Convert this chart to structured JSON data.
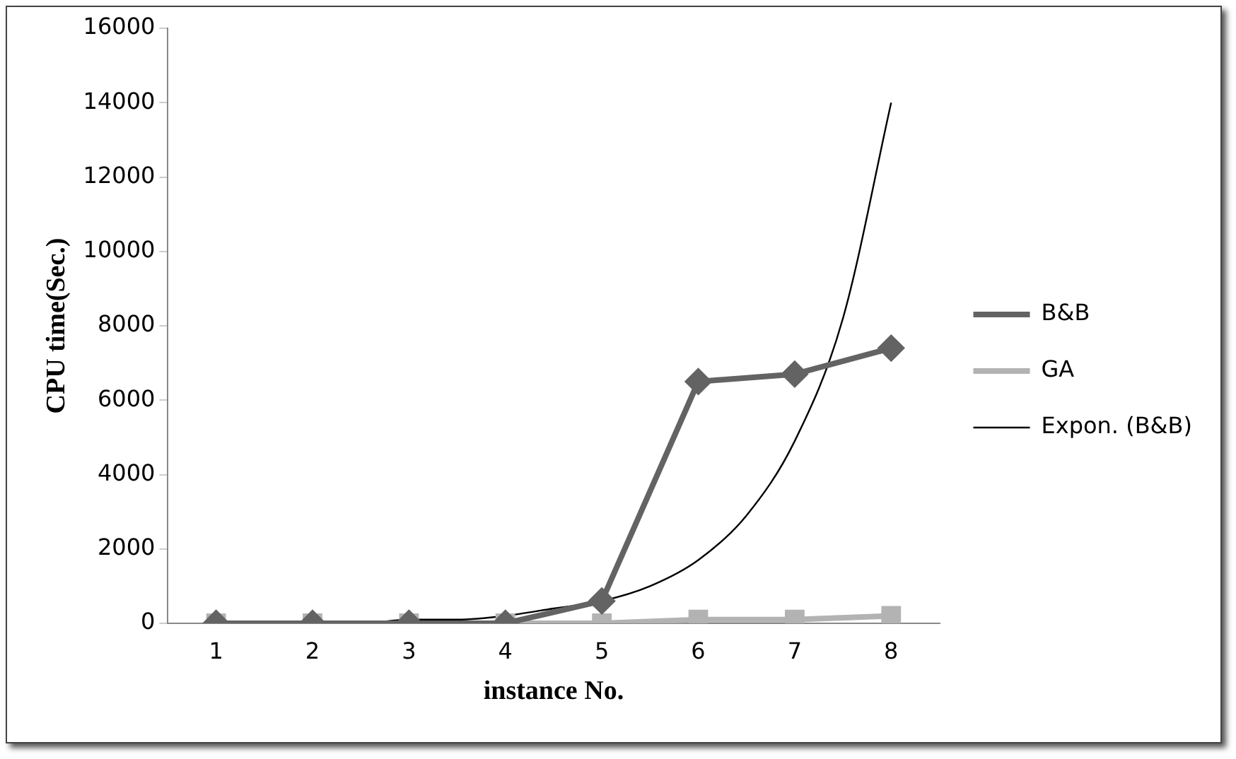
{
  "chart_data": {
    "type": "line",
    "xlabel": "instance No.",
    "ylabel": "CPU time(Sec.)",
    "x": [
      1,
      2,
      3,
      4,
      5,
      6,
      7,
      8
    ],
    "xlim": [
      0.5,
      8.5
    ],
    "xticks": [
      1,
      2,
      3,
      4,
      5,
      6,
      7,
      8
    ],
    "ylim": [
      0,
      16000
    ],
    "yticks": [
      0,
      2000,
      4000,
      6000,
      8000,
      10000,
      12000,
      14000,
      16000
    ],
    "grid": false,
    "legend": "right",
    "series": [
      {
        "name": "B&B",
        "color": "#636363",
        "marker": "diamond",
        "values": [
          0,
          0,
          0,
          0,
          600,
          6500,
          6700,
          7400
        ]
      },
      {
        "name": "GA",
        "color": "#b3b3b3",
        "marker": "square",
        "values": [
          0,
          0,
          0,
          0,
          0,
          100,
          100,
          200
        ]
      },
      {
        "name": "Expon. (B&B)",
        "color": "#000000",
        "marker": "none",
        "x": [
          1,
          1.5,
          2,
          2.5,
          3,
          3.5,
          4,
          4.5,
          5,
          5.5,
          6,
          6.5,
          7,
          7.5,
          8
        ],
        "values": [
          0,
          0,
          0,
          0,
          100,
          100,
          200,
          400,
          600,
          1000,
          1700,
          2900,
          4900,
          8200,
          14000
        ]
      }
    ]
  }
}
